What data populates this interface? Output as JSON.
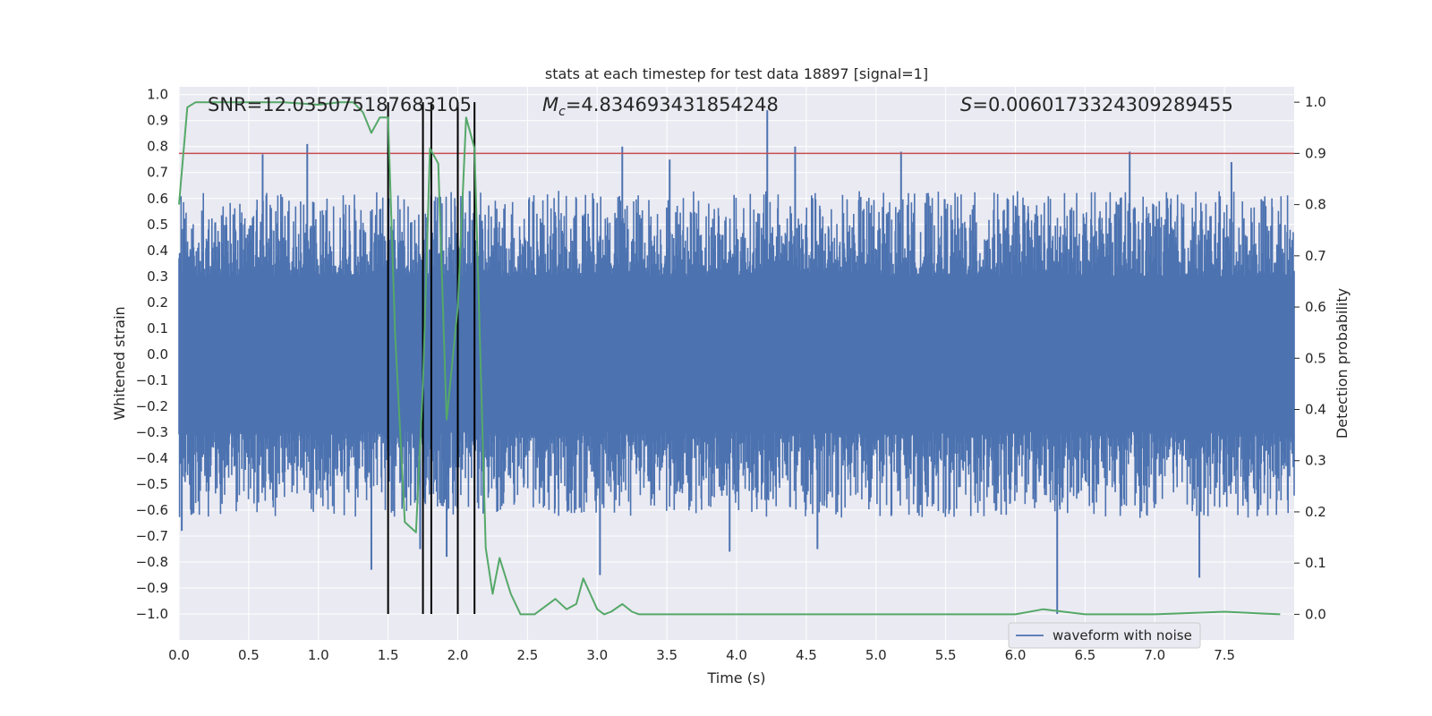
{
  "chart_data": {
    "type": "line",
    "title": "stats at each timestep for test data 18897 [signal=1]",
    "xlabel": "Time (s)",
    "ylabel_left": "Whitened strain",
    "ylabel_right": "Detection probability",
    "xlim": [
      0.0,
      8.0
    ],
    "ylim_left": [
      -1.1,
      1.03
    ],
    "ylim_right": [
      -0.05,
      1.03
    ],
    "x_ticks": [
      "0.0",
      "0.5",
      "1.0",
      "1.5",
      "2.0",
      "2.5",
      "3.0",
      "3.5",
      "4.0",
      "4.5",
      "5.0",
      "5.5",
      "6.0",
      "6.5",
      "7.0",
      "7.5"
    ],
    "x_tick_values": [
      0.0,
      0.5,
      1.0,
      1.5,
      2.0,
      2.5,
      3.0,
      3.5,
      4.0,
      4.5,
      5.0,
      5.5,
      6.0,
      6.5,
      7.0,
      7.5
    ],
    "y_left_ticks": [
      "1.0",
      "0.9",
      "0.8",
      "0.7",
      "0.6",
      "0.5",
      "0.4",
      "0.3",
      "0.2",
      "0.1",
      "0.0",
      "−0.1",
      "−0.2",
      "−0.3",
      "−0.4",
      "−0.5",
      "−0.6",
      "−0.7",
      "−0.8",
      "−0.9",
      "−1.0"
    ],
    "y_left_tick_values": [
      1.0,
      0.9,
      0.8,
      0.7,
      0.6,
      0.5,
      0.4,
      0.3,
      0.2,
      0.1,
      0.0,
      -0.1,
      -0.2,
      -0.3,
      -0.4,
      -0.5,
      -0.6,
      -0.7,
      -0.8,
      -0.9,
      -1.0
    ],
    "y_right_ticks": [
      "1.0",
      "0.9",
      "0.8",
      "0.7",
      "0.6",
      "0.5",
      "0.4",
      "0.3",
      "0.2",
      "0.1",
      "0.0"
    ],
    "y_right_tick_values": [
      1.0,
      0.9,
      0.8,
      0.7,
      0.6,
      0.5,
      0.4,
      0.3,
      0.2,
      0.1,
      0.0
    ],
    "annotations": {
      "snr": "SNR=12.035075187683105",
      "mc_symbol": "M",
      "mc_sub": "c",
      "mc_value": "=4.834693431854248",
      "s_symbol": "S",
      "s_value": "=0.0060173324309289455"
    },
    "threshold": {
      "value": 0.9,
      "axis": "right",
      "color": "#c44e52"
    },
    "markers": [
      1.5,
      1.75,
      1.81,
      2.0,
      2.12
    ],
    "series": [
      {
        "name": "waveform with noise",
        "axis": "left",
        "color": "#4c72b0",
        "style": "dense noise",
        "envelope": {
          "core": 0.3,
          "typical_peak": 0.6,
          "t_start": 0.0,
          "t_end": 8.0
        },
        "spikes": [
          {
            "t": 0.92,
            "v": 0.81
          },
          {
            "t": 0.6,
            "v": 0.77
          },
          {
            "t": 0.02,
            "v": -0.68
          },
          {
            "t": 1.38,
            "v": -0.83
          },
          {
            "t": 1.73,
            "v": -0.75
          },
          {
            "t": 1.92,
            "v": -0.78
          },
          {
            "t": 3.02,
            "v": -0.85
          },
          {
            "t": 3.18,
            "v": 0.8
          },
          {
            "t": 3.52,
            "v": 0.75
          },
          {
            "t": 3.95,
            "v": -0.76
          },
          {
            "t": 4.22,
            "v": 0.94
          },
          {
            "t": 4.42,
            "v": 0.8
          },
          {
            "t": 4.58,
            "v": -0.75
          },
          {
            "t": 5.18,
            "v": 0.78
          },
          {
            "t": 6.3,
            "v": -1.0
          },
          {
            "t": 6.82,
            "v": 0.78
          },
          {
            "t": 7.32,
            "v": -0.86
          },
          {
            "t": 7.55,
            "v": 0.74
          }
        ]
      },
      {
        "name": "detection probability",
        "axis": "right",
        "color": "#55a868",
        "x": [
          0.0,
          0.06,
          0.12,
          0.25,
          0.5,
          0.75,
          1.0,
          1.15,
          1.25,
          1.32,
          1.38,
          1.44,
          1.5,
          1.55,
          1.62,
          1.7,
          1.75,
          1.8,
          1.86,
          1.92,
          2.0,
          2.06,
          2.12,
          2.2,
          2.25,
          2.3,
          2.38,
          2.45,
          2.55,
          2.7,
          2.78,
          2.85,
          2.9,
          2.95,
          3.0,
          3.05,
          3.1,
          3.18,
          3.25,
          3.3,
          3.5,
          4.0,
          4.5,
          5.0,
          5.5,
          6.0,
          6.2,
          6.5,
          7.0,
          7.5,
          7.9
        ],
        "y": [
          0.8,
          0.99,
          1.0,
          1.0,
          1.0,
          1.0,
          0.995,
          1.0,
          1.0,
          0.98,
          0.94,
          0.97,
          0.97,
          0.55,
          0.18,
          0.16,
          0.45,
          0.91,
          0.88,
          0.38,
          0.6,
          0.97,
          0.91,
          0.13,
          0.04,
          0.11,
          0.04,
          0.0,
          0.0,
          0.03,
          0.01,
          0.02,
          0.07,
          0.04,
          0.01,
          0.0,
          0.005,
          0.02,
          0.005,
          0.0,
          0.0,
          0.0,
          0.0,
          0.0,
          0.0,
          0.0,
          0.01,
          0.0,
          0.0,
          0.005,
          0.0
        ]
      }
    ],
    "legend": {
      "entries": [
        "waveform with noise"
      ],
      "placement": "lower-right"
    },
    "grid": true
  },
  "colors": {
    "plot_background": "#eaeaf2",
    "grid": "#ffffff",
    "marker_lines": "#000000"
  }
}
